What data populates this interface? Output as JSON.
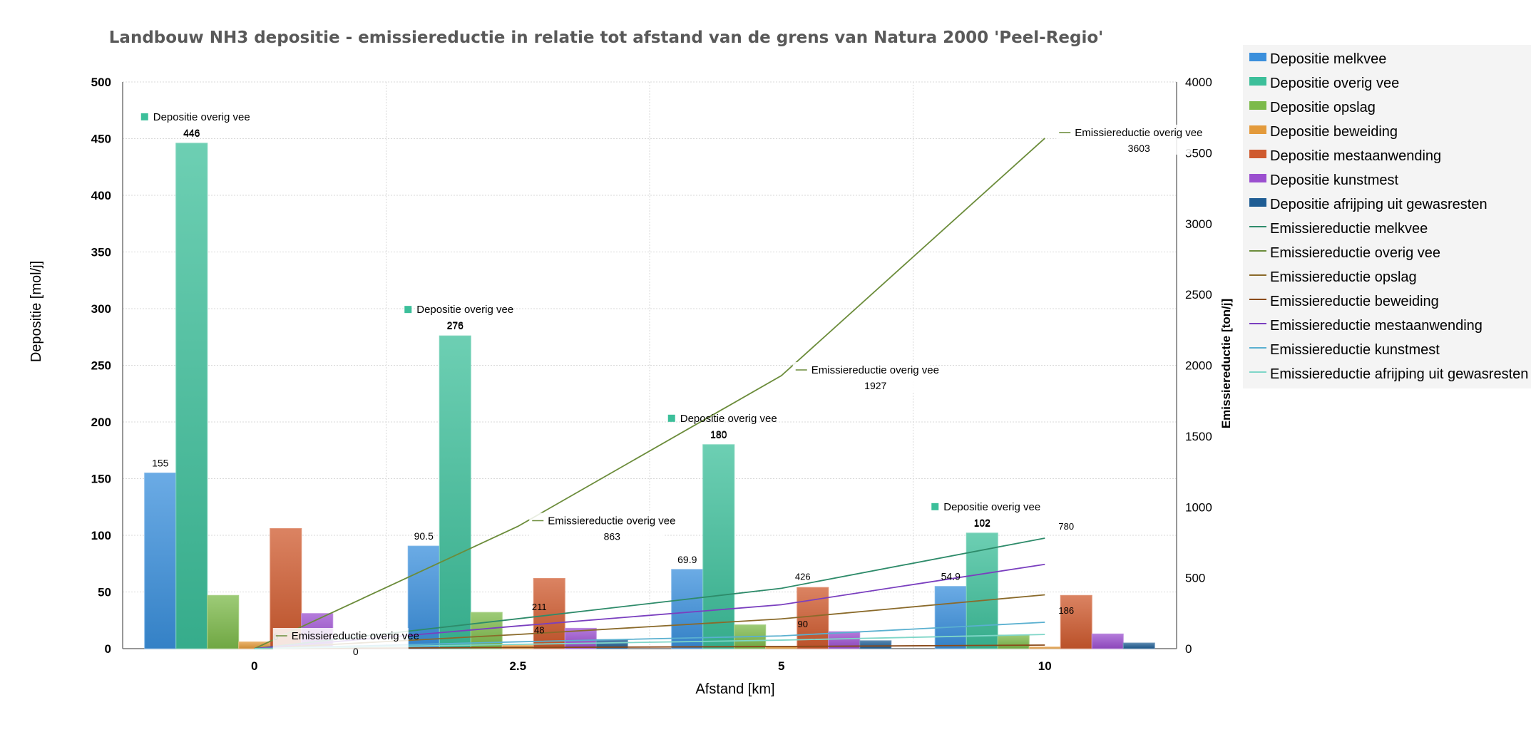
{
  "chart_data": {
    "type": "bar",
    "title": "Landbouw NH3 depositie - emissiereductie in relatie tot afstand van de grens van Natura 2000 'Peel-Regio'",
    "xlabel": "Afstand [km]",
    "ylabel": "Depositie [mol/j]",
    "y2label": "Emissiereductie [ton/j]",
    "categories": [
      "0",
      "2.5",
      "5",
      "10"
    ],
    "ylim": [
      0,
      500
    ],
    "y2lim": [
      0,
      4000
    ],
    "yticks": [
      "0",
      "50",
      "100",
      "150",
      "200",
      "250",
      "300",
      "350",
      "400",
      "450",
      "500"
    ],
    "y2ticks": [
      "0",
      "500",
      "1000",
      "1500",
      "2000",
      "2500",
      "3000",
      "3500",
      "4000"
    ],
    "grid": true,
    "legend_position": "right",
    "bar_series": [
      {
        "name": "Depositie melkvee",
        "color": "#3a8fdc",
        "values": [
          155,
          90.5,
          69.9,
          54.9
        ],
        "labels": [
          "155",
          "90.5",
          "69.9",
          "54.9"
        ]
      },
      {
        "name": "Depositie overig vee",
        "color": "#3cbf9a",
        "values": [
          446,
          276,
          180,
          102
        ],
        "labels": [
          "446",
          "276",
          "180",
          "102"
        ]
      },
      {
        "name": "Depositie opslag",
        "color": "#7cba4a",
        "values": [
          47,
          32,
          21,
          12
        ],
        "labels": []
      },
      {
        "name": "Depositie beweiding",
        "color": "#e39a3b",
        "values": [
          6,
          3,
          2,
          1.5
        ],
        "labels": []
      },
      {
        "name": "Depositie mestaanwending",
        "color": "#cf5a2e",
        "values": [
          106,
          62,
          54,
          47
        ],
        "labels": []
      },
      {
        "name": "Depositie kunstmest",
        "color": "#9b4fcf",
        "values": [
          31,
          18,
          15,
          13
        ],
        "labels": []
      },
      {
        "name": "Depositie afrijping uit gewasresten",
        "color": "#1f5d94",
        "values": [
          0,
          8,
          7,
          5
        ],
        "labels": []
      }
    ],
    "line_series": [
      {
        "name": "Emissiereductie melkvee",
        "color": "#2e8b6a",
        "values": [
          0,
          211,
          426,
          780
        ]
      },
      {
        "name": "Emissiereductie overig vee",
        "color": "#6b8c3a",
        "values": [
          0,
          863,
          1927,
          3603
        ]
      },
      {
        "name": "Emissiereductie opslag",
        "color": "#8a6a2a",
        "values": [
          0,
          100,
          210,
          380
        ]
      },
      {
        "name": "Emissiereductie beweiding",
        "color": "#8a4a1a",
        "values": [
          0,
          8,
          15,
          25
        ]
      },
      {
        "name": "Emissiereductie mestaanwending",
        "color": "#7a3fbf",
        "values": [
          0,
          160,
          310,
          595
        ]
      },
      {
        "name": "Emissiereductie kunstmest",
        "color": "#5ab0d0",
        "values": [
          0,
          48,
          90,
          186
        ]
      },
      {
        "name": "Emissiereductie afrijping uit gewasresten",
        "color": "#7fd6c8",
        "values": [
          0,
          30,
          60,
          100
        ]
      }
    ],
    "line_labels": [
      {
        "series": 0,
        "index": 1,
        "text": "211"
      },
      {
        "series": 0,
        "index": 2,
        "text": "426"
      },
      {
        "series": 0,
        "index": 3,
        "text": "780"
      },
      {
        "series": 5,
        "index": 1,
        "text": "48"
      },
      {
        "series": 5,
        "index": 2,
        "text": "90"
      },
      {
        "series": 5,
        "index": 3,
        "text": "186"
      },
      {
        "series": 1,
        "index": 0,
        "text": "0"
      }
    ],
    "callouts": {
      "bar": {
        "name": "Depositie overig vee",
        "values": [
          "446",
          "276",
          "180",
          "102"
        ]
      },
      "line": {
        "name": "Emissiereductie overig vee",
        "values": [
          "0",
          "863",
          "1927",
          "3603"
        ]
      }
    }
  }
}
